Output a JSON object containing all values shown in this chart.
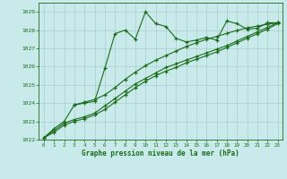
{
  "title": "Graphe pression niveau de la mer (hPa)",
  "bg_color": "#c8eaea",
  "grid_color": "#aacccc",
  "line_color": "#1a6b1a",
  "xlim": [
    -0.5,
    23.5
  ],
  "ylim": [
    1022,
    1029.5
  ],
  "yticks": [
    1022,
    1023,
    1024,
    1025,
    1026,
    1027,
    1028,
    1029
  ],
  "xticks": [
    0,
    1,
    2,
    3,
    4,
    5,
    6,
    7,
    8,
    9,
    10,
    11,
    12,
    13,
    14,
    15,
    16,
    17,
    18,
    19,
    20,
    21,
    22,
    23
  ],
  "series1_x": [
    0,
    1,
    2,
    3,
    4,
    5,
    6,
    7,
    8,
    9,
    10,
    11,
    12,
    13,
    14,
    15,
    16,
    17,
    18,
    19,
    20,
    21,
    22,
    23
  ],
  "series1_y": [
    1022.1,
    1022.6,
    1023.0,
    1023.9,
    1024.0,
    1024.1,
    1025.9,
    1027.8,
    1028.0,
    1027.5,
    1029.0,
    1028.35,
    1028.2,
    1027.55,
    1027.35,
    1027.45,
    1027.6,
    1027.45,
    1028.5,
    1028.35,
    1028.05,
    1028.1,
    1028.4,
    1028.4
  ],
  "series2_x": [
    0,
    1,
    2,
    3,
    4,
    5,
    6,
    7,
    8,
    9,
    10,
    11,
    12,
    13,
    14,
    15,
    16,
    17,
    18,
    19,
    20,
    21,
    22,
    23
  ],
  "series2_y": [
    1022.1,
    1022.4,
    1022.8,
    1023.0,
    1023.15,
    1023.35,
    1023.65,
    1024.05,
    1024.45,
    1024.85,
    1025.2,
    1025.5,
    1025.75,
    1025.95,
    1026.2,
    1026.4,
    1026.6,
    1026.8,
    1027.05,
    1027.3,
    1027.55,
    1027.8,
    1028.05,
    1028.35
  ],
  "series3_x": [
    0,
    1,
    2,
    3,
    4,
    5,
    6,
    7,
    8,
    9,
    10,
    11,
    12,
    13,
    14,
    15,
    16,
    17,
    18,
    19,
    20,
    21,
    22,
    23
  ],
  "series3_y": [
    1022.1,
    1022.5,
    1022.9,
    1023.1,
    1023.25,
    1023.45,
    1023.85,
    1024.25,
    1024.65,
    1025.05,
    1025.35,
    1025.65,
    1025.95,
    1026.15,
    1026.35,
    1026.55,
    1026.75,
    1026.95,
    1027.15,
    1027.4,
    1027.65,
    1027.9,
    1028.15,
    1028.4
  ],
  "series4_x": [
    3,
    4,
    5,
    6,
    7,
    8,
    9,
    10,
    11,
    12,
    13,
    14,
    15,
    16,
    17,
    18,
    19,
    20,
    21,
    22,
    23
  ],
  "series4_y": [
    1023.9,
    1024.05,
    1024.2,
    1024.45,
    1024.85,
    1025.3,
    1025.7,
    1026.05,
    1026.35,
    1026.6,
    1026.85,
    1027.1,
    1027.3,
    1027.5,
    1027.65,
    1027.82,
    1027.98,
    1028.12,
    1028.22,
    1028.32,
    1028.4
  ]
}
